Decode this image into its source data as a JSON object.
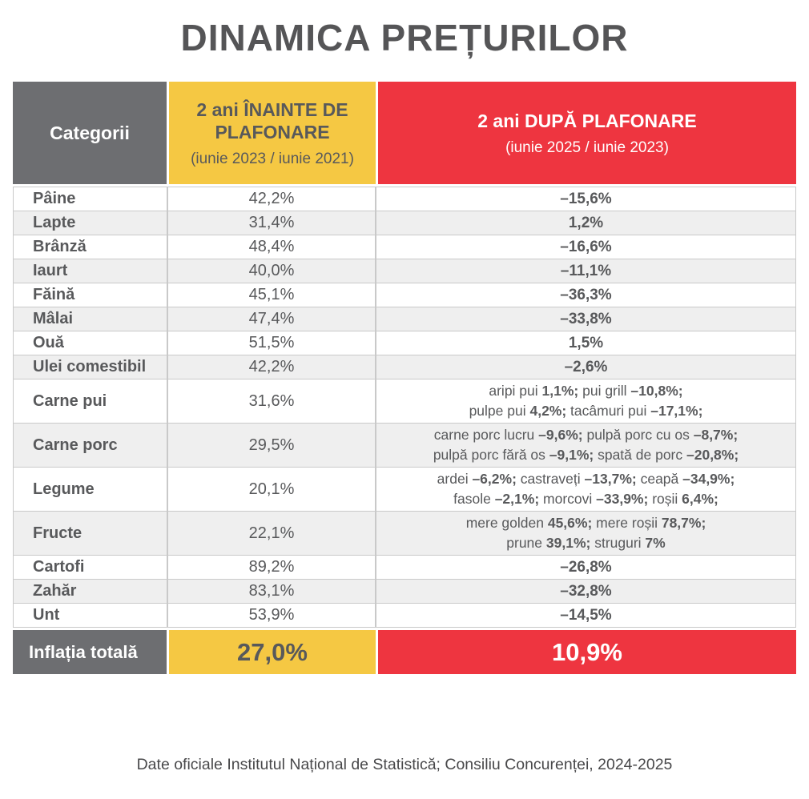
{
  "title": "DINAMICA PREȚURILOR",
  "colors": {
    "gray": "#6d6e71",
    "yellow": "#f5c843",
    "red": "#ee3540",
    "text": "#58595b"
  },
  "table": {
    "header": {
      "col1": "Categorii",
      "col2_title": "2 ani ÎNAINTE DE PLAFONARE",
      "col2_subtitle": "(iunie 2023 / iunie 2021)",
      "col3_title": "2 ani DUPĂ PLAFONARE",
      "col3_subtitle": "(iunie 2025 / iunie 2023)"
    },
    "rows": [
      {
        "category": "Pâine",
        "before": "42,2%",
        "after": "–15,6%"
      },
      {
        "category": "Lapte",
        "before": "31,4%",
        "after": "1,2%"
      },
      {
        "category": "Brânză",
        "before": "48,4%",
        "after": "–16,6%"
      },
      {
        "category": "Iaurt",
        "before": "40,0%",
        "after": "–11,1%"
      },
      {
        "category": "Făină",
        "before": "45,1%",
        "after": "–36,3%"
      },
      {
        "category": "Mâlai",
        "before": "47,4%",
        "after": "–33,8%"
      },
      {
        "category": "Ouă",
        "before": "51,5%",
        "after": "1,5%"
      },
      {
        "category": "Ulei comestibil",
        "before": "42,2%",
        "after": "–2,6%"
      },
      {
        "category": "Carne pui",
        "before": "31,6%",
        "after_lines": [
          [
            {
              "t": "aripi pui ",
              "b": false
            },
            {
              "t": "1,1%;",
              "b": true
            },
            {
              "t": " pui grill ",
              "b": false
            },
            {
              "t": "–10,8%;",
              "b": true
            }
          ],
          [
            {
              "t": "pulpe pui ",
              "b": false
            },
            {
              "t": "4,2%;",
              "b": true
            },
            {
              "t": " tacâmuri pui ",
              "b": false
            },
            {
              "t": "–17,1%;",
              "b": true
            }
          ]
        ]
      },
      {
        "category": "Carne porc",
        "before": "29,5%",
        "after_lines": [
          [
            {
              "t": "carne porc lucru ",
              "b": false
            },
            {
              "t": "–9,6%;",
              "b": true
            },
            {
              "t": " pulpă porc cu os ",
              "b": false
            },
            {
              "t": "–8,7%;",
              "b": true
            }
          ],
          [
            {
              "t": "pulpă porc fără os ",
              "b": false
            },
            {
              "t": "–9,1%;",
              "b": true
            },
            {
              "t": " spată de porc ",
              "b": false
            },
            {
              "t": "–20,8%;",
              "b": true
            }
          ]
        ]
      },
      {
        "category": "Legume",
        "before": "20,1%",
        "after_lines": [
          [
            {
              "t": "ardei ",
              "b": false
            },
            {
              "t": "–6,2%;",
              "b": true
            },
            {
              "t": " castraveți ",
              "b": false
            },
            {
              "t": "–13,7%;",
              "b": true
            },
            {
              "t": " ceapă ",
              "b": false
            },
            {
              "t": "–34,9%;",
              "b": true
            }
          ],
          [
            {
              "t": "fasole ",
              "b": false
            },
            {
              "t": "–2,1%;",
              "b": true
            },
            {
              "t": " morcovi ",
              "b": false
            },
            {
              "t": "–33,9%;",
              "b": true
            },
            {
              "t": " roșii ",
              "b": false
            },
            {
              "t": "6,4%;",
              "b": true
            }
          ]
        ]
      },
      {
        "category": "Fructe",
        "before": "22,1%",
        "after_lines": [
          [
            {
              "t": "mere golden ",
              "b": false
            },
            {
              "t": "45,6%;",
              "b": true
            },
            {
              "t": " mere roșii ",
              "b": false
            },
            {
              "t": "78,7%;",
              "b": true
            }
          ],
          [
            {
              "t": "prune ",
              "b": false
            },
            {
              "t": "39,1%;",
              "b": true
            },
            {
              "t": " struguri ",
              "b": false
            },
            {
              "t": "7%",
              "b": true
            }
          ]
        ]
      },
      {
        "category": "Cartofi",
        "before": "89,2%",
        "after": "–26,8%"
      },
      {
        "category": "Zahăr",
        "before": "83,1%",
        "after": "–32,8%"
      },
      {
        "category": "Unt",
        "before": "53,9%",
        "after": "–14,5%"
      }
    ],
    "total": {
      "label": "Inflația totală",
      "before": "27,0%",
      "after": "10,9%"
    }
  },
  "footer": "Date oficiale Institutul Național de Statistică; Consiliu Concurenței, 2024-2025",
  "chart_data": {
    "type": "table",
    "title": "DINAMICA PREȚURILOR",
    "columns": [
      "Categorii",
      "2 ani ÎNAINTE DE PLAFONARE (iunie 2023 / iunie 2021)",
      "2 ani DUPĂ PLAFONARE (iunie 2025 / iunie 2023)"
    ],
    "rows": [
      {
        "category": "Pâine",
        "before_pct": 42.2,
        "after_pct": -15.6
      },
      {
        "category": "Lapte",
        "before_pct": 31.4,
        "after_pct": 1.2
      },
      {
        "category": "Brânză",
        "before_pct": 48.4,
        "after_pct": -16.6
      },
      {
        "category": "Iaurt",
        "before_pct": 40.0,
        "after_pct": -11.1
      },
      {
        "category": "Făină",
        "before_pct": 45.1,
        "after_pct": -36.3
      },
      {
        "category": "Mâlai",
        "before_pct": 47.4,
        "after_pct": -33.8
      },
      {
        "category": "Ouă",
        "before_pct": 51.5,
        "after_pct": 1.5
      },
      {
        "category": "Ulei comestibil",
        "before_pct": 42.2,
        "after_pct": -2.6
      },
      {
        "category": "Carne pui",
        "before_pct": 31.6,
        "after_detail": {
          "aripi pui": 1.1,
          "pui grill": -10.8,
          "pulpe pui": 4.2,
          "tacâmuri pui": -17.1
        }
      },
      {
        "category": "Carne porc",
        "before_pct": 29.5,
        "after_detail": {
          "carne porc lucru": -9.6,
          "pulpă porc cu os": -8.7,
          "pulpă porc fără os": -9.1,
          "spată de porc": -20.8
        }
      },
      {
        "category": "Legume",
        "before_pct": 20.1,
        "after_detail": {
          "ardei": -6.2,
          "castraveți": -13.7,
          "ceapă": -34.9,
          "fasole": -2.1,
          "morcovi": -33.9,
          "roșii": 6.4
        }
      },
      {
        "category": "Fructe",
        "before_pct": 22.1,
        "after_detail": {
          "mere golden": 45.6,
          "mere roșii": 78.7,
          "prune": 39.1,
          "struguri": 7
        }
      },
      {
        "category": "Cartofi",
        "before_pct": 89.2,
        "after_pct": -26.8
      },
      {
        "category": "Zahăr",
        "before_pct": 83.1,
        "after_pct": -32.8
      },
      {
        "category": "Unt",
        "before_pct": 53.9,
        "after_pct": -14.5
      },
      {
        "category": "Inflația totală",
        "before_pct": 27.0,
        "after_pct": 10.9
      }
    ]
  }
}
